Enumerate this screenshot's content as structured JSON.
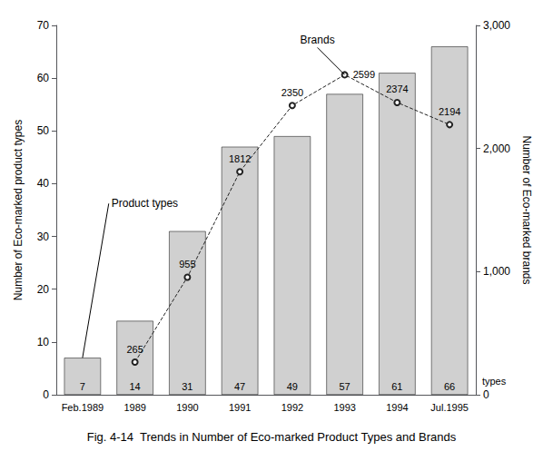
{
  "chart_data": {
    "type": "bar",
    "title": "Fig. 4-14  Trends in Number of Eco-marked Product Types and Brands",
    "categories": [
      "Feb.1989",
      "1989",
      "1990",
      "1991",
      "1992",
      "1993",
      "1994",
      "Jul.1995"
    ],
    "series": [
      {
        "type": "bar",
        "color": "#d0d0d0",
        "values": [
          7,
          14,
          31,
          47,
          49,
          57,
          61,
          66
        ]
      },
      {
        "type": "line",
        "axis": "y2",
        "color": "#222222",
        "line_style": "dashed",
        "marker": "circle",
        "values": [
          null,
          265,
          955,
          1812,
          2350,
          2599,
          2374,
          2194
        ]
      }
    ],
    "ylabel": "Number of Eco-marked product types",
    "y2label": "Number of Eco-marked brands",
    "ylim": [
      0,
      70
    ],
    "yticks": [
      0,
      10,
      20,
      30,
      40,
      50,
      60,
      70
    ],
    "y2lim": [
      0,
      3000
    ],
    "y2ticks": [
      0,
      1000,
      2000,
      3000
    ],
    "data_labels": true,
    "grid": false,
    "annotations": [
      "Product types",
      "Brands",
      "types"
    ]
  }
}
